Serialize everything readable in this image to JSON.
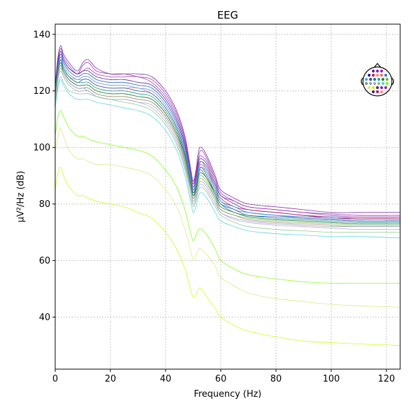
{
  "chart_data": {
    "type": "line",
    "title": "EEG",
    "xlabel": "Frequency (Hz)",
    "ylabel": "µV²/Hz (dB)",
    "xlim": [
      0,
      125
    ],
    "ylim": [
      21.6,
      143.6
    ],
    "xticks": [
      0,
      20,
      40,
      60,
      80,
      100,
      120
    ],
    "yticks": [
      40,
      60,
      80,
      100,
      120,
      140
    ],
    "grid": true,
    "legend": "none",
    "inset": "sensor-topomap (top-right)",
    "x": [
      0,
      1,
      2,
      3,
      5,
      8,
      10,
      12,
      15,
      20,
      25,
      30,
      35,
      40,
      44,
      47,
      49,
      50,
      51,
      52,
      53,
      55,
      58,
      60,
      65,
      70,
      80,
      90,
      100,
      110,
      125
    ],
    "series": [
      {
        "color": "#6a1b9a",
        "values": [
          122,
          132,
          136,
          133,
          130,
          127,
          130,
          131,
          128,
          126,
          126,
          126,
          125,
          120,
          113,
          104,
          93,
          88,
          92,
          99,
          100,
          97,
          90,
          85,
          82,
          80,
          79,
          78,
          77,
          77,
          77
        ]
      },
      {
        "color": "#8e24aa",
        "values": [
          121,
          131,
          135,
          132,
          129,
          126,
          129,
          130,
          127,
          126,
          126,
          125,
          124,
          119,
          112,
          103,
          92,
          87,
          91,
          97,
          99,
          96,
          89,
          84,
          81,
          79,
          78,
          77,
          76.5,
          76,
          76
        ]
      },
      {
        "color": "#9c27b0",
        "values": [
          120,
          130,
          133,
          131,
          128,
          126,
          127,
          128,
          126,
          125,
          125,
          125,
          123,
          118,
          111,
          102,
          91,
          87,
          90,
          96,
          97,
          95,
          88,
          83,
          81,
          79,
          78,
          77,
          76,
          75.5,
          75.5
        ]
      },
      {
        "color": "#4a148c",
        "values": [
          121,
          130,
          134,
          131,
          128,
          126,
          127,
          127,
          125,
          124,
          124,
          123,
          122,
          117,
          110,
          101,
          90,
          86,
          89,
          95,
          96,
          94,
          87,
          83,
          80,
          78,
          77,
          76,
          75.5,
          75,
          75
        ]
      },
      {
        "color": "#c2185b",
        "values": [
          120,
          129,
          132,
          130,
          127,
          125,
          126,
          126,
          124,
          123,
          123,
          122,
          121,
          116,
          109,
          100,
          90,
          85,
          88,
          94,
          95,
          93,
          86,
          82,
          79,
          78,
          77,
          76,
          75,
          75,
          75
        ]
      },
      {
        "color": "#ff8a80",
        "values": [
          119,
          128,
          131,
          129,
          126,
          124,
          125,
          125,
          123,
          122,
          122,
          121,
          120,
          115,
          108,
          99,
          89,
          84,
          87,
          93,
          94,
          92,
          85,
          81,
          79,
          77,
          76,
          75.5,
          75,
          74.5,
          74.5
        ]
      },
      {
        "color": "#e57373",
        "values": [
          119,
          128,
          131,
          128,
          125,
          124,
          124,
          124,
          122,
          121,
          121,
          121,
          119,
          114,
          107,
          98,
          88,
          84,
          86,
          92,
          93,
          91,
          85,
          81,
          78,
          77,
          76,
          75,
          74.5,
          74,
          74
        ]
      },
      {
        "color": "#1e88e5",
        "values": [
          120,
          129,
          133,
          130,
          127,
          125,
          126,
          126,
          124,
          123,
          123,
          122,
          121,
          116,
          109,
          100,
          90,
          85,
          88,
          93,
          95,
          92,
          86,
          81,
          79,
          77,
          76,
          75.5,
          75,
          74.5,
          74.5
        ]
      },
      {
        "color": "#42a5f5",
        "values": [
          119,
          128,
          132,
          129,
          126,
          124,
          125,
          125,
          123,
          122,
          122,
          121,
          120,
          115,
          108,
          99,
          89,
          84,
          87,
          92,
          94,
          91,
          85,
          81,
          78,
          77,
          76,
          75,
          74.5,
          74,
          74
        ]
      },
      {
        "color": "#3949ab",
        "values": [
          118,
          127,
          131,
          128,
          125,
          123,
          124,
          124,
          122,
          121,
          121,
          120,
          119,
          114,
          107,
          98,
          88,
          84,
          86,
          91,
          93,
          90,
          84,
          80,
          78,
          76,
          75.5,
          75,
          74.5,
          74,
          74
        ]
      },
      {
        "color": "#00897b",
        "values": [
          118,
          127,
          130,
          128,
          125,
          123,
          123,
          123,
          121,
          120,
          120,
          119,
          118,
          113,
          106,
          97,
          88,
          83,
          86,
          91,
          92,
          89,
          84,
          80,
          77,
          76,
          75,
          74.5,
          74,
          73.5,
          73.5
        ]
      },
      {
        "color": "#26a69a",
        "values": [
          117,
          126,
          129,
          127,
          124,
          122,
          122,
          122,
          120,
          119,
          119,
          118,
          117,
          112,
          105,
          96,
          87,
          83,
          85,
          90,
          91,
          89,
          83,
          79,
          77,
          75.5,
          74.5,
          74,
          73.5,
          73,
          73
        ]
      },
      {
        "color": "#2e7d32",
        "values": [
          118,
          127,
          130,
          127,
          124,
          122,
          122,
          122,
          120,
          119,
          119,
          118,
          117,
          112,
          105,
          97,
          88,
          83,
          85,
          90,
          91,
          89,
          83,
          79,
          77,
          75.5,
          74.5,
          74,
          73.5,
          73,
          73
        ]
      },
      {
        "color": "#7cb342",
        "values": [
          117,
          126,
          129,
          126,
          123,
          121,
          121,
          121,
          119,
          118,
          118,
          117,
          116,
          111,
          104,
          95,
          86,
          82,
          84,
          89,
          90,
          88,
          82,
          78,
          76,
          75,
          74,
          73.5,
          73,
          72.5,
          72.5
        ]
      },
      {
        "color": "#a1887f",
        "values": [
          117,
          125,
          128,
          126,
          123,
          121,
          121,
          121,
          119,
          118,
          118,
          117,
          116,
          111,
          104,
          95,
          86,
          82,
          84,
          88,
          89,
          87,
          82,
          78,
          76,
          74.5,
          73.5,
          73,
          72.5,
          72,
          72
        ]
      },
      {
        "color": "#90a4ae",
        "values": [
          116,
          124,
          127,
          125,
          122,
          120,
          120,
          120,
          118,
          117,
          117,
          116,
          115,
          110,
          103,
          94,
          85,
          81,
          83,
          87,
          88,
          86,
          81,
          77,
          75,
          74,
          73,
          72.5,
          72,
          72,
          72
        ]
      },
      {
        "color": "#b39ddb",
        "values": [
          117,
          125,
          128,
          126,
          123,
          121,
          121,
          120,
          118,
          117,
          117,
          116,
          114,
          109,
          102,
          93,
          85,
          80,
          82,
          86,
          87,
          85,
          80,
          77,
          74.5,
          73.5,
          72.5,
          72,
          71.5,
          71,
          71
        ]
      },
      {
        "color": "#81c784",
        "values": [
          115,
          122,
          125,
          123,
          120,
          119,
          119,
          119,
          118,
          117,
          116,
          115,
          113,
          108,
          101,
          92,
          83,
          79,
          81,
          85,
          86,
          84,
          79,
          76,
          73.5,
          72,
          71,
          70.5,
          70,
          70,
          70
        ]
      },
      {
        "color": "#4dd0e1",
        "values": [
          114,
          121,
          124,
          122,
          119,
          117,
          117,
          117,
          116,
          115,
          114,
          113,
          111,
          106,
          99,
          90,
          81,
          77,
          79,
          83,
          84,
          82,
          77,
          74,
          72,
          70.5,
          69.5,
          69,
          68.5,
          68.5,
          68
        ]
      },
      {
        "color": "#76ff03",
        "values": [
          104,
          111,
          113,
          111,
          107,
          104,
          104,
          103,
          102,
          101,
          100,
          99,
          97,
          92,
          86,
          78,
          70,
          67,
          69,
          71,
          71,
          69,
          64,
          60,
          57,
          55,
          53.5,
          52.5,
          52,
          52,
          52
        ]
      },
      {
        "color": "#dce775",
        "values": [
          98,
          104,
          107,
          104,
          99,
          96,
          96,
          95,
          94,
          94,
          93,
          92,
          90,
          85,
          79,
          71,
          64,
          60,
          62,
          64,
          64,
          62,
          58,
          54,
          51,
          48.5,
          46.5,
          45.5,
          44.5,
          44,
          43.5
        ]
      },
      {
        "color": "#c6ff00",
        "values": [
          85,
          91,
          93,
          90,
          86,
          83,
          83,
          82,
          81,
          80,
          79,
          77,
          75,
          70,
          64,
          57,
          50,
          47,
          48,
          50,
          50,
          47,
          43,
          40,
          37,
          35,
          33,
          31.5,
          31,
          30.5,
          30
        ]
      }
    ]
  }
}
